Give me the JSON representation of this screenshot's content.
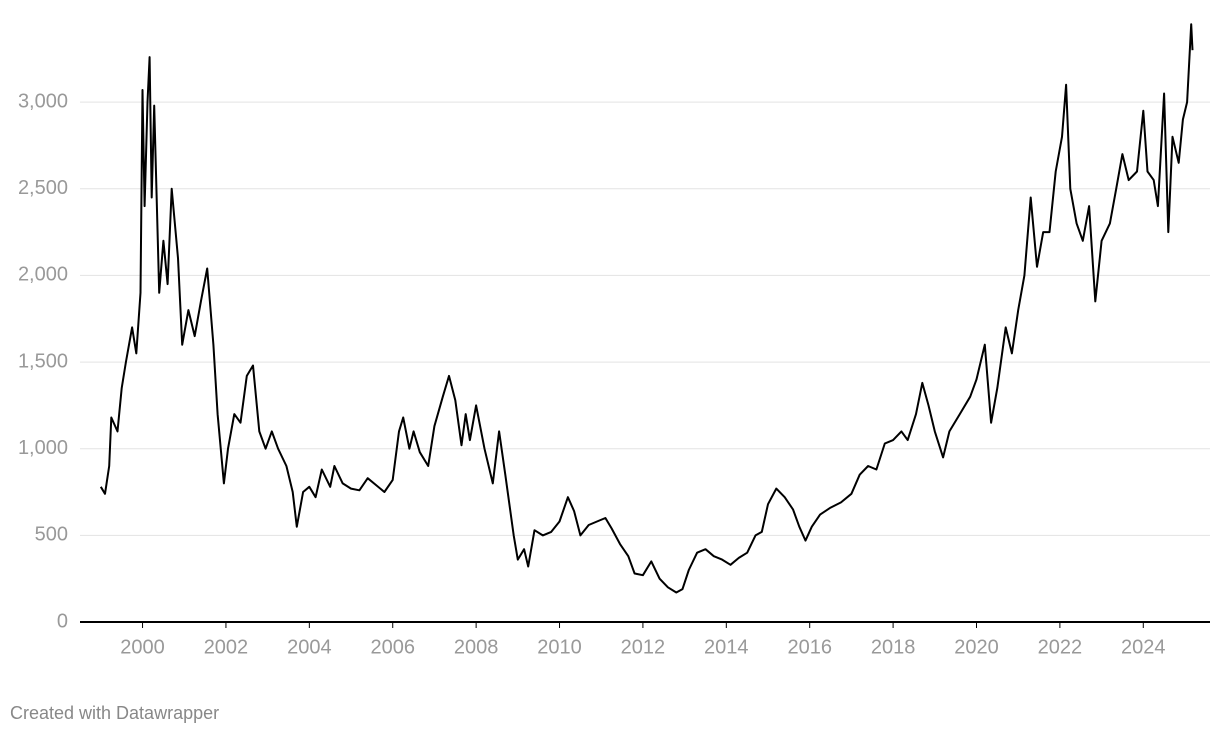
{
  "chart_data": {
    "type": "line",
    "footer": "Created with Datawrapper",
    "x": [
      1999.0,
      1999.1,
      1999.2,
      1999.25,
      1999.4,
      1999.5,
      1999.6,
      1999.75,
      1999.85,
      1999.95,
      2000.0,
      2000.05,
      2000.12,
      2000.17,
      2000.22,
      2000.28,
      2000.4,
      2000.5,
      2000.6,
      2000.7,
      2000.85,
      2000.95,
      2001.1,
      2001.25,
      2001.4,
      2001.55,
      2001.7,
      2001.8,
      2001.95,
      2002.05,
      2002.2,
      2002.35,
      2002.5,
      2002.65,
      2002.8,
      2002.95,
      2003.1,
      2003.25,
      2003.45,
      2003.6,
      2003.7,
      2003.85,
      2004.0,
      2004.15,
      2004.3,
      2004.5,
      2004.6,
      2004.8,
      2005.0,
      2005.2,
      2005.4,
      2005.6,
      2005.8,
      2006.0,
      2006.15,
      2006.25,
      2006.4,
      2006.5,
      2006.65,
      2006.85,
      2007.0,
      2007.2,
      2007.35,
      2007.5,
      2007.65,
      2007.75,
      2007.85,
      2008.0,
      2008.2,
      2008.4,
      2008.55,
      2008.7,
      2008.9,
      2009.0,
      2009.15,
      2009.25,
      2009.4,
      2009.6,
      2009.8,
      2010.0,
      2010.2,
      2010.35,
      2010.5,
      2010.7,
      2010.9,
      2011.1,
      2011.25,
      2011.45,
      2011.65,
      2011.8,
      2012.0,
      2012.2,
      2012.4,
      2012.6,
      2012.8,
      2012.95,
      2013.1,
      2013.3,
      2013.5,
      2013.7,
      2013.9,
      2014.1,
      2014.3,
      2014.5,
      2014.7,
      2014.85,
      2015.0,
      2015.2,
      2015.4,
      2015.6,
      2015.75,
      2015.9,
      2016.05,
      2016.25,
      2016.5,
      2016.75,
      2017.0,
      2017.2,
      2017.4,
      2017.6,
      2017.8,
      2018.0,
      2018.2,
      2018.35,
      2018.55,
      2018.7,
      2018.85,
      2019.0,
      2019.2,
      2019.35,
      2019.6,
      2019.85,
      2020.0,
      2020.2,
      2020.35,
      2020.5,
      2020.7,
      2020.85,
      2021.0,
      2021.15,
      2021.3,
      2021.45,
      2021.6,
      2021.75,
      2021.9,
      2022.05,
      2022.15,
      2022.25,
      2022.4,
      2022.55,
      2022.7,
      2022.85,
      2023.0,
      2023.2,
      2023.35,
      2023.5,
      2023.65,
      2023.85,
      2024.0,
      2024.1,
      2024.25,
      2024.35,
      2024.5,
      2024.6,
      2024.7,
      2024.85,
      2024.95,
      2025.05,
      2025.15,
      2025.18
    ],
    "series": [
      {
        "color": "#000000",
        "values": [
          780,
          740,
          900,
          1180,
          1100,
          1350,
          1500,
          1700,
          1550,
          1900,
          3070,
          2400,
          3000,
          3260,
          2450,
          2980,
          1900,
          2200,
          1950,
          2500,
          2100,
          1600,
          1800,
          1650,
          1850,
          2040,
          1600,
          1200,
          800,
          1000,
          1200,
          1150,
          1420,
          1480,
          1100,
          1000,
          1100,
          1000,
          900,
          750,
          550,
          750,
          780,
          720,
          880,
          780,
          900,
          800,
          770,
          760,
          830,
          790,
          750,
          820,
          1100,
          1180,
          1000,
          1100,
          980,
          900,
          1130,
          1300,
          1420,
          1280,
          1020,
          1200,
          1050,
          1250,
          1000,
          800,
          1100,
          850,
          500,
          360,
          420,
          320,
          530,
          500,
          520,
          580,
          720,
          640,
          500,
          560,
          580,
          600,
          540,
          450,
          380,
          280,
          270,
          350,
          250,
          200,
          170,
          190,
          300,
          400,
          420,
          380,
          360,
          330,
          370,
          400,
          500,
          520,
          680,
          770,
          720,
          650,
          550,
          470,
          550,
          620,
          660,
          690,
          740,
          850,
          900,
          880,
          1030,
          1050,
          1100,
          1050,
          1200,
          1380,
          1250,
          1100,
          950,
          1100,
          1200,
          1300,
          1400,
          1600,
          1150,
          1350,
          1700,
          1550,
          1800,
          2000,
          2450,
          2050,
          2250,
          2250,
          2600,
          2800,
          3100,
          2500,
          2300,
          2200,
          2400,
          1850,
          2200,
          2300,
          2500,
          2700,
          2550,
          2600,
          2950,
          2600,
          2550,
          2400,
          3050,
          2250,
          2800,
          2650,
          2900,
          3000,
          3450,
          3300
        ]
      }
    ],
    "xlim": [
      1998.5,
      2025.6
    ],
    "xticks": [
      2000,
      2002,
      2004,
      2006,
      2008,
      2010,
      2012,
      2014,
      2016,
      2018,
      2020,
      2022,
      2024
    ],
    "ylim": [
      0,
      3500
    ],
    "yticks": [
      0,
      500,
      {
        "value": 1000,
        "label": "1,000"
      },
      {
        "value": 1500,
        "label": "1,500"
      },
      {
        "value": 2000,
        "label": "2,000"
      },
      {
        "value": 2500,
        "label": "2,500"
      },
      {
        "value": 3000,
        "label": "3,000"
      }
    ],
    "grid": true
  }
}
